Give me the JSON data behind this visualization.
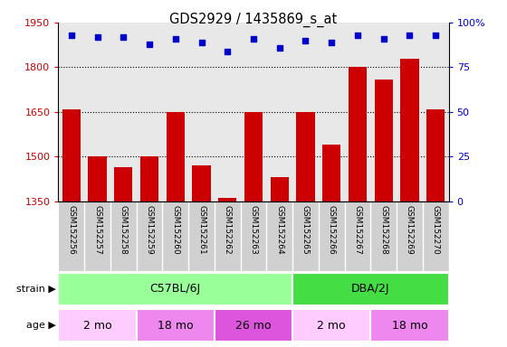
{
  "title": "GDS2929 / 1435869_s_at",
  "samples": [
    "GSM152256",
    "GSM152257",
    "GSM152258",
    "GSM152259",
    "GSM152260",
    "GSM152261",
    "GSM152262",
    "GSM152263",
    "GSM152264",
    "GSM152265",
    "GSM152266",
    "GSM152267",
    "GSM152268",
    "GSM152269",
    "GSM152270"
  ],
  "counts": [
    1660,
    1500,
    1465,
    1500,
    1650,
    1470,
    1360,
    1650,
    1430,
    1650,
    1540,
    1800,
    1760,
    1830,
    1660
  ],
  "percentiles": [
    93,
    92,
    92,
    88,
    91,
    89,
    84,
    91,
    86,
    90,
    89,
    93,
    91,
    93,
    93
  ],
  "ylim": [
    1350,
    1950
  ],
  "yticks": [
    1350,
    1500,
    1650,
    1800,
    1950
  ],
  "ytick_labels": [
    "1350",
    "1500",
    "1650",
    "1800",
    "1950"
  ],
  "right_yticks": [
    0,
    25,
    50,
    75,
    100
  ],
  "right_ytick_labels": [
    "0",
    "25",
    "50",
    "75",
    "100%"
  ],
  "bar_color": "#cc0000",
  "dot_color": "#0000cc",
  "strain_groups": [
    {
      "label": "C57BL/6J",
      "start": 0,
      "end": 9,
      "color": "#99ff99"
    },
    {
      "label": "DBA/2J",
      "start": 9,
      "end": 15,
      "color": "#44dd44"
    }
  ],
  "age_groups": [
    {
      "label": "2 mo",
      "start": 0,
      "end": 3,
      "color": "#ffccff"
    },
    {
      "label": "18 mo",
      "start": 3,
      "end": 6,
      "color": "#ee88ee"
    },
    {
      "label": "26 mo",
      "start": 6,
      "end": 9,
      "color": "#dd66dd"
    },
    {
      "label": "2 mo",
      "start": 9,
      "end": 12,
      "color": "#ffccff"
    },
    {
      "label": "18 mo",
      "start": 12,
      "end": 15,
      "color": "#ee88ee"
    }
  ],
  "plot_bg_color": "#e8e8e8",
  "label_area_color": "#d0d0d0"
}
